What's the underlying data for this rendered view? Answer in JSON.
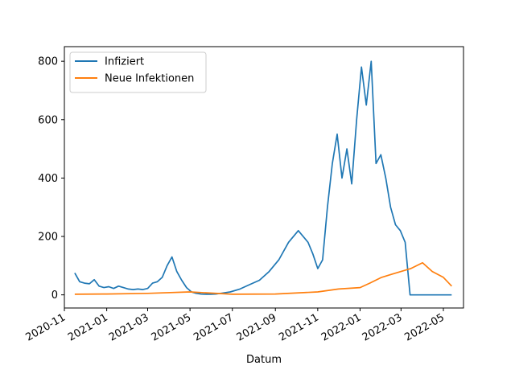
{
  "chart_data": {
    "type": "line",
    "title": "",
    "xlabel": "Datum",
    "ylabel": "",
    "xlim": [
      "2020-11-01",
      "2022-05-30"
    ],
    "ylim": [
      -45,
      850
    ],
    "grid": false,
    "legend_position": "top-left",
    "x_ticks": [
      "2020-11",
      "2021-01",
      "2021-03",
      "2021-05",
      "2021-07",
      "2021-09",
      "2021-11",
      "2022-01",
      "2022-03",
      "2022-05"
    ],
    "y_ticks": [
      0,
      200,
      400,
      600,
      800
    ],
    "series": [
      {
        "name": "Infiziert",
        "color": "#1f77b4",
        "x": [
          "2020-11-16",
          "2020-11-23",
          "2020-11-30",
          "2020-12-07",
          "2020-12-14",
          "2020-12-21",
          "2020-12-28",
          "2021-01-04",
          "2021-01-11",
          "2021-01-18",
          "2021-01-25",
          "2021-02-01",
          "2021-02-08",
          "2021-02-15",
          "2021-02-22",
          "2021-03-01",
          "2021-03-08",
          "2021-03-15",
          "2021-03-22",
          "2021-03-29",
          "2021-04-05",
          "2021-04-12",
          "2021-04-19",
          "2021-04-26",
          "2021-05-03",
          "2021-05-10",
          "2021-05-17",
          "2021-05-24",
          "2021-05-31",
          "2021-06-07",
          "2021-06-14",
          "2021-06-28",
          "2021-07-12",
          "2021-07-26",
          "2021-08-09",
          "2021-08-23",
          "2021-09-06",
          "2021-09-20",
          "2021-10-04",
          "2021-10-18",
          "2021-10-25",
          "2021-11-01",
          "2021-11-08",
          "2021-11-15",
          "2021-11-22",
          "2021-11-29",
          "2021-12-06",
          "2021-12-13",
          "2021-12-20",
          "2021-12-27",
          "2022-01-03",
          "2022-01-10",
          "2022-01-17",
          "2022-01-24",
          "2022-01-31",
          "2022-02-07",
          "2022-02-14",
          "2022-02-21",
          "2022-02-28",
          "2022-03-07",
          "2022-03-14",
          "2022-03-21",
          "2022-03-28",
          "2022-04-04",
          "2022-04-11",
          "2022-04-18",
          "2022-04-25",
          "2022-05-02",
          "2022-05-09",
          "2022-05-13"
        ],
        "values": [
          75,
          45,
          40,
          38,
          52,
          30,
          25,
          28,
          22,
          30,
          25,
          20,
          18,
          20,
          18,
          22,
          40,
          45,
          60,
          100,
          130,
          80,
          50,
          25,
          10,
          5,
          3,
          2,
          2,
          3,
          5,
          10,
          20,
          35,
          50,
          80,
          120,
          180,
          220,
          180,
          140,
          90,
          120,
          300,
          450,
          550,
          400,
          500,
          380,
          600,
          780,
          650,
          800,
          450,
          480,
          400,
          300,
          240,
          220,
          180,
          0,
          0,
          0,
          0,
          0,
          0,
          0,
          0,
          0,
          0
        ],
        "values_note": ""
      },
      {
        "name": "Neue Infektionen",
        "color": "#ff7f0e",
        "x": [
          "2020-11-16",
          "2021-01-01",
          "2021-03-01",
          "2021-05-01",
          "2021-07-01",
          "2021-09-01",
          "2021-11-01",
          "2021-12-01",
          "2022-01-01",
          "2022-01-15",
          "2022-02-01",
          "2022-02-15",
          "2022-03-01",
          "2022-03-15",
          "2022-04-01",
          "2022-04-15",
          "2022-05-01",
          "2022-05-13"
        ],
        "values": [
          2,
          3,
          5,
          10,
          2,
          3,
          10,
          20,
          25,
          40,
          60,
          70,
          80,
          90,
          110,
          80,
          60,
          30
        ]
      }
    ]
  }
}
